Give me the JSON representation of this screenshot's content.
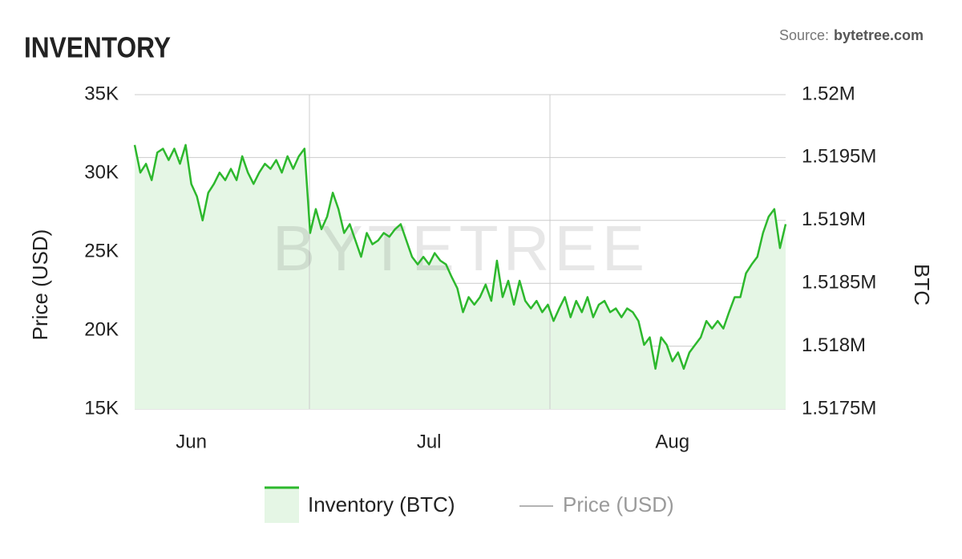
{
  "chart_data": {
    "type": "area",
    "title": "INVENTORY",
    "source_label": "Source:",
    "source_site": "bytetree.com",
    "watermark": "BYTETREE",
    "y_label": "Price (USD)",
    "y2_label": "BTC",
    "ylim": [
      15000,
      35000
    ],
    "yticks": [
      {
        "value": 15000,
        "label": "15K"
      },
      {
        "value": 20000,
        "label": "20K"
      },
      {
        "value": 25000,
        "label": "25K"
      },
      {
        "value": 30000,
        "label": "30K"
      },
      {
        "value": 35000,
        "label": "35K"
      }
    ],
    "y2lim": [
      1517500,
      1520000
    ],
    "y2ticks": [
      {
        "value": 1517500,
        "label": "1.5175M"
      },
      {
        "value": 1518000,
        "label": "1.518M"
      },
      {
        "value": 1518500,
        "label": "1.5185M"
      },
      {
        "value": 1519000,
        "label": "1.519M"
      },
      {
        "value": 1519500,
        "label": "1.5195M"
      },
      {
        "value": 1520000,
        "label": "1.52M"
      }
    ],
    "grid": "y2",
    "legend": "bottom",
    "categories": [
      null,
      null,
      null,
      null,
      null,
      null,
      null,
      null,
      null,
      null,
      "Jun",
      null,
      null,
      null,
      null,
      null,
      null,
      null,
      null,
      null,
      null,
      null,
      null,
      null,
      null,
      null,
      null,
      null,
      null,
      null,
      null,
      null,
      null,
      null,
      null,
      null,
      null,
      null,
      null,
      null,
      null,
      null,
      null,
      null,
      null,
      null,
      null,
      null,
      null,
      null,
      null,
      null,
      "Jul",
      null,
      null,
      null,
      null,
      null,
      null,
      null,
      null,
      null,
      null,
      null,
      null,
      null,
      null,
      null,
      null,
      null,
      null,
      null,
      null,
      null,
      null,
      null,
      null,
      null,
      null,
      null,
      null,
      null,
      null,
      null,
      null,
      null,
      null,
      null,
      null,
      null,
      null,
      null,
      null,
      null,
      null,
      "Aug",
      null,
      null,
      null,
      null,
      null,
      null,
      null,
      null,
      null,
      null,
      null,
      null,
      null,
      null,
      null,
      null,
      null,
      null,
      null,
      null
    ],
    "series": [
      {
        "name": "Inventory (BTC)",
        "color": "#2db82d",
        "fill": "#e5f6e5",
        "axis": "y2",
        "values": [
          1519600,
          1519380,
          1519450,
          1519320,
          1519540,
          1519570,
          1519480,
          1519570,
          1519450,
          1519600,
          1519290,
          1519190,
          1519000,
          1519220,
          1519290,
          1519380,
          1519320,
          1519410,
          1519320,
          1519510,
          1519380,
          1519290,
          1519380,
          1519450,
          1519410,
          1519480,
          1519380,
          1519510,
          1519410,
          1519510,
          1519570,
          1518900,
          1519090,
          1518930,
          1519030,
          1519220,
          1519090,
          1518900,
          1518970,
          1518840,
          1518710,
          1518900,
          1518810,
          1518840,
          1518900,
          1518870,
          1518930,
          1518970,
          1518840,
          1518710,
          1518650,
          1518710,
          1518650,
          1518740,
          1518680,
          1518650,
          1518550,
          1518460,
          1518270,
          1518390,
          1518330,
          1518390,
          1518490,
          1518360,
          1518680,
          1518390,
          1518520,
          1518330,
          1518520,
          1518360,
          1518300,
          1518360,
          1518270,
          1518330,
          1518200,
          1518300,
          1518390,
          1518230,
          1518360,
          1518270,
          1518390,
          1518230,
          1518330,
          1518360,
          1518270,
          1518300,
          1518230,
          1518300,
          1518270,
          1518200,
          1518010,
          1518070,
          1517820,
          1518070,
          1518010,
          1517880,
          1517950,
          1517820,
          1517950,
          1518010,
          1518070,
          1518200,
          1518140,
          1518200,
          1518140,
          1518270,
          1518390,
          1518390,
          1518580,
          1518650,
          1518710,
          1518900,
          1519030,
          1519090,
          1518780,
          1518970
        ]
      },
      {
        "name": "Price (USD)",
        "color": "#9a9a9a",
        "axis": "y"
      }
    ]
  }
}
